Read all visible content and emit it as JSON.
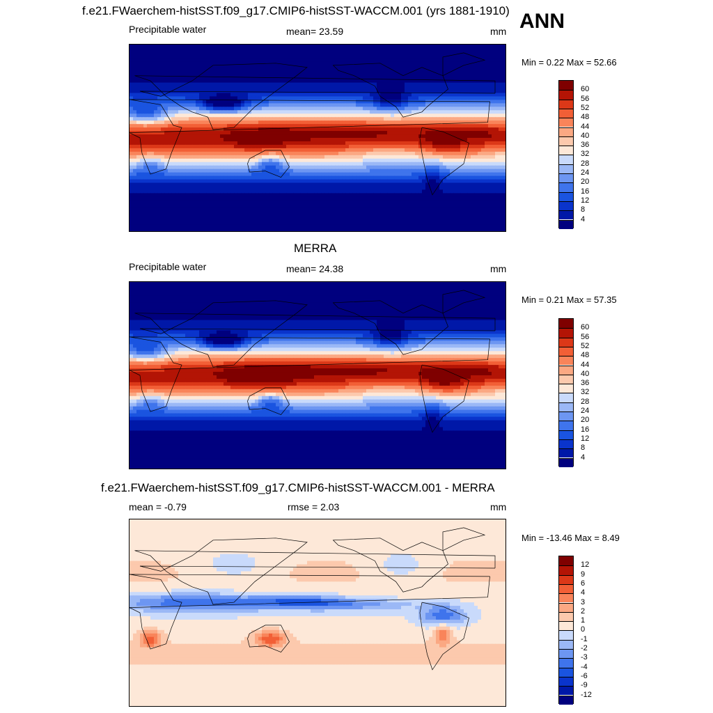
{
  "header": {
    "title": "f.e21.FWaerchem-histSST.f09_g17.CMIP6-histSST-WACCM.001 (yrs 1881-1910)",
    "season": "ANN"
  },
  "panels": [
    {
      "id": "model",
      "panel_title": "",
      "variable": "Precipitable water",
      "stat_text": "mean=  23.59",
      "units": "mm",
      "minmax_text": "Min =   0.22 Max =  52.66",
      "colorbar_ticks": [
        "60",
        "56",
        "52",
        "48",
        "44",
        "40",
        "36",
        "32",
        "28",
        "24",
        "20",
        "16",
        "12",
        "8",
        "4"
      ]
    },
    {
      "id": "obs",
      "panel_title": "MERRA",
      "variable": "Precipitable water",
      "stat_text": "mean=  24.38",
      "units": "mm",
      "minmax_text": "Min =   0.21 Max =  57.35",
      "colorbar_ticks": [
        "60",
        "56",
        "52",
        "48",
        "44",
        "40",
        "36",
        "32",
        "28",
        "24",
        "20",
        "16",
        "12",
        "8",
        "4"
      ]
    },
    {
      "id": "diff",
      "panel_title": "f.e21.FWaerchem-histSST.f09_g17.CMIP6-histSST-WACCM.001 - MERRA",
      "left_text": "mean =  -0.79",
      "stat_text": "rmse =   2.03",
      "units": "mm",
      "minmax_text": "Min = -13.46 Max =   8.49",
      "colorbar_ticks": [
        "12",
        "9",
        "6",
        "4",
        "3",
        "2",
        "1",
        "0",
        "-1",
        "-2",
        "-3",
        "-4",
        "-6",
        "-9",
        "-12"
      ]
    }
  ],
  "chart_data": [
    {
      "type": "heatmap",
      "title": "f.e21.FWaerchem-histSST.f09_g17.CMIP6-histSST-WACCM.001 (yrs 1881-1910)",
      "variable": "Precipitable water",
      "units": "mm",
      "mean": 23.59,
      "min": 0.22,
      "max": 52.66,
      "levels": [
        4,
        8,
        12,
        16,
        20,
        24,
        28,
        32,
        36,
        40,
        44,
        48,
        52,
        56,
        60
      ],
      "colors": [
        "#00007f",
        "#0018a8",
        "#0a34cc",
        "#1a54e0",
        "#3f74ec",
        "#6d96f2",
        "#9bb8f6",
        "#c9dafb",
        "#fde8d8",
        "#fcc9ad",
        "#fba883",
        "#f9845a",
        "#f25f36",
        "#dc3818",
        "#b31405",
        "#7f0000"
      ],
      "lon_range": [
        0,
        360
      ],
      "lat_range": [
        -90,
        90
      ]
    },
    {
      "type": "heatmap",
      "title": "MERRA",
      "variable": "Precipitable water",
      "units": "mm",
      "mean": 24.38,
      "min": 0.21,
      "max": 57.35,
      "levels": [
        4,
        8,
        12,
        16,
        20,
        24,
        28,
        32,
        36,
        40,
        44,
        48,
        52,
        56,
        60
      ],
      "colors": [
        "#00007f",
        "#0018a8",
        "#0a34cc",
        "#1a54e0",
        "#3f74ec",
        "#6d96f2",
        "#9bb8f6",
        "#c9dafb",
        "#fde8d8",
        "#fcc9ad",
        "#fba883",
        "#f9845a",
        "#f25f36",
        "#dc3818",
        "#b31405",
        "#7f0000"
      ],
      "lon_range": [
        0,
        360
      ],
      "lat_range": [
        -90,
        90
      ]
    },
    {
      "type": "heatmap",
      "title": "f.e21.FWaerchem-histSST.f09_g17.CMIP6-histSST-WACCM.001 - MERRA",
      "units": "mm",
      "mean": -0.79,
      "rmse": 2.03,
      "min": -13.46,
      "max": 8.49,
      "levels": [
        -12,
        -9,
        -6,
        -4,
        -3,
        -2,
        -1,
        0,
        1,
        2,
        3,
        4,
        6,
        9,
        12
      ],
      "colors": [
        "#00007f",
        "#0018a8",
        "#0a34cc",
        "#1a54e0",
        "#3f74ec",
        "#6d96f2",
        "#9bb8f6",
        "#c9dafb",
        "#fde8d8",
        "#fcc9ad",
        "#fba883",
        "#f9845a",
        "#f25f36",
        "#dc3818",
        "#b31405",
        "#7f0000"
      ],
      "lon_range": [
        0,
        360
      ],
      "lat_range": [
        -90,
        90
      ]
    }
  ]
}
